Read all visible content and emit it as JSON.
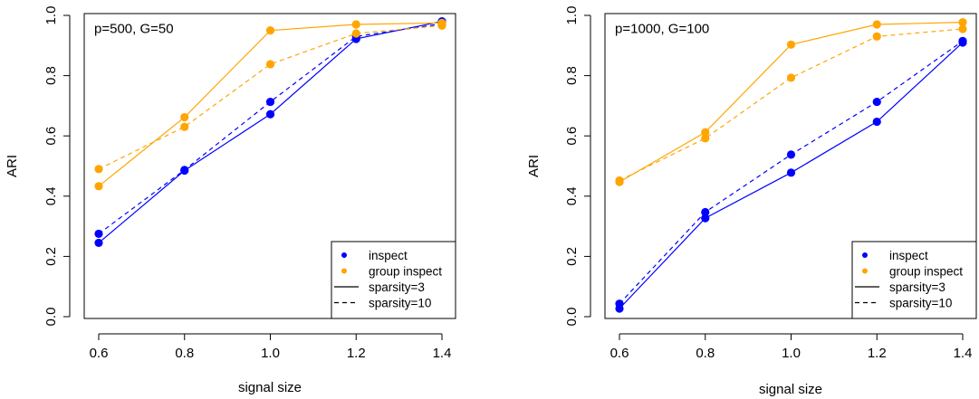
{
  "chart_data": [
    {
      "type": "line",
      "title": "",
      "annotation": "p=500, G=50",
      "xlabel": "signal size",
      "ylabel": "ARI",
      "x": [
        0.6,
        0.8,
        1.0,
        1.2,
        1.4
      ],
      "x_ticks": [
        "0.6",
        "0.8",
        "1.0",
        "1.2",
        "1.4"
      ],
      "y_ticks": [
        "0.0",
        "0.2",
        "0.4",
        "0.6",
        "0.8",
        "1.0"
      ],
      "xlim": [
        0.6,
        1.4
      ],
      "ylim": [
        0.0,
        1.0
      ],
      "grid": false,
      "legend_position": "bottom-right",
      "legend": [
        {
          "label": "inspect",
          "kind": "point",
          "color": "#0000ff"
        },
        {
          "label": "group inspect",
          "kind": "point",
          "color": "#ffa500"
        },
        {
          "label": "sparsity=3",
          "kind": "line",
          "dash": "solid"
        },
        {
          "label": "sparsity=10",
          "kind": "line",
          "dash": "dashed"
        }
      ],
      "series": [
        {
          "method": "inspect",
          "sparsity": "3",
          "color": "#0000ff",
          "dash": "solid",
          "values": [
            0.245,
            0.485,
            0.672,
            0.922,
            0.98
          ]
        },
        {
          "method": "inspect",
          "sparsity": "10",
          "color": "#0000ff",
          "dash": "dashed",
          "values": [
            0.275,
            0.487,
            0.713,
            0.93,
            0.972
          ]
        },
        {
          "method": "group inspect",
          "sparsity": "3",
          "color": "#ffa500",
          "dash": "solid",
          "values": [
            0.433,
            0.662,
            0.95,
            0.97,
            0.975
          ]
        },
        {
          "method": "group inspect",
          "sparsity": "10",
          "color": "#ffa500",
          "dash": "dashed",
          "values": [
            0.49,
            0.63,
            0.838,
            0.94,
            0.966
          ]
        }
      ]
    },
    {
      "type": "line",
      "title": "",
      "annotation": "p=1000, G=100",
      "xlabel": "signal size",
      "ylabel": "ARI",
      "x": [
        0.6,
        0.8,
        1.0,
        1.2,
        1.4
      ],
      "x_ticks": [
        "0.6",
        "0.8",
        "1.0",
        "1.2",
        "1.4"
      ],
      "y_ticks": [
        "0.0",
        "0.2",
        "0.4",
        "0.6",
        "0.8",
        "1.0"
      ],
      "xlim": [
        0.6,
        1.4
      ],
      "ylim": [
        0.0,
        1.0
      ],
      "grid": false,
      "legend_position": "bottom-right",
      "legend": [
        {
          "label": "inspect",
          "kind": "point",
          "color": "#0000ff"
        },
        {
          "label": "group inspect",
          "kind": "point",
          "color": "#ffa500"
        },
        {
          "label": "sparsity=3",
          "kind": "line",
          "dash": "solid"
        },
        {
          "label": "sparsity=10",
          "kind": "line",
          "dash": "dashed"
        }
      ],
      "series": [
        {
          "method": "inspect",
          "sparsity": "3",
          "color": "#0000ff",
          "dash": "solid",
          "values": [
            0.027,
            0.327,
            0.478,
            0.647,
            0.91
          ]
        },
        {
          "method": "inspect",
          "sparsity": "10",
          "color": "#0000ff",
          "dash": "dashed",
          "values": [
            0.043,
            0.347,
            0.538,
            0.713,
            0.915
          ]
        },
        {
          "method": "group inspect",
          "sparsity": "3",
          "color": "#ffa500",
          "dash": "solid",
          "values": [
            0.447,
            0.612,
            0.903,
            0.97,
            0.977
          ]
        },
        {
          "method": "group inspect",
          "sparsity": "10",
          "color": "#ffa500",
          "dash": "dashed",
          "values": [
            0.452,
            0.592,
            0.793,
            0.93,
            0.955
          ]
        }
      ]
    }
  ]
}
